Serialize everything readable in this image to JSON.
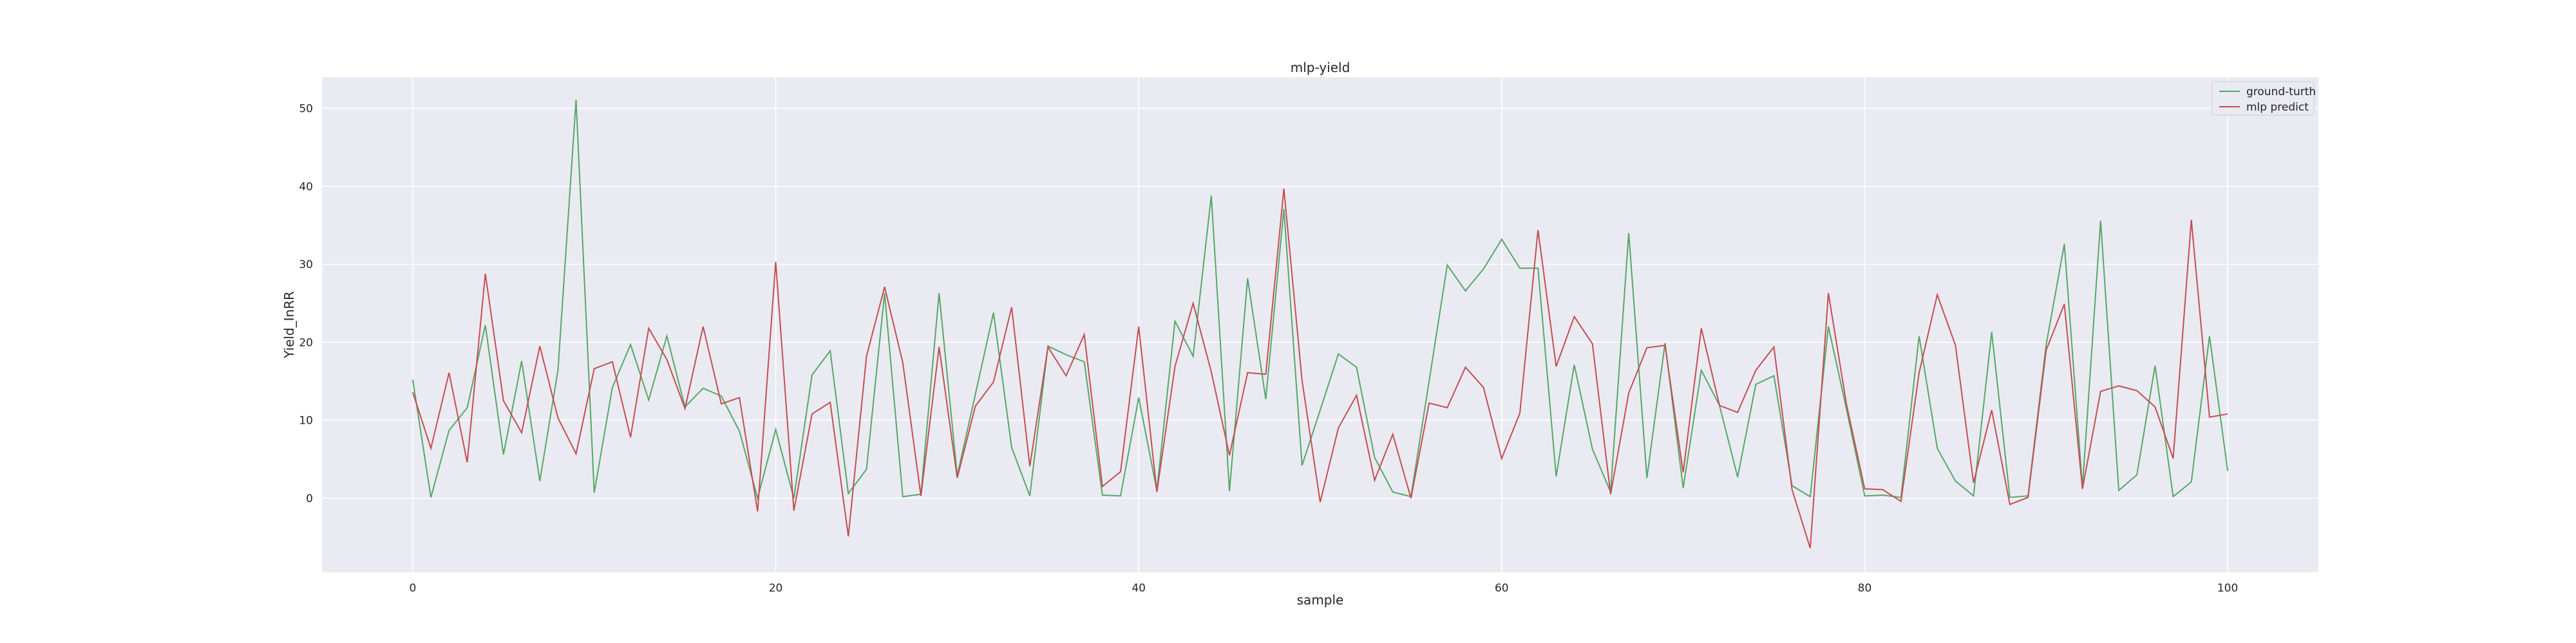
{
  "chart_data": {
    "type": "line",
    "title": "mlp-yield",
    "xlabel": "sample",
    "ylabel": "Yield_InRR",
    "xlim": [
      -5,
      105
    ],
    "ylim": [
      -9.5,
      54
    ],
    "x_ticks": [
      0,
      20,
      40,
      60,
      80,
      100
    ],
    "y_ticks": [
      0,
      10,
      20,
      30,
      40,
      50
    ],
    "grid": true,
    "background_color": "#eaeaf2",
    "legend_position": "top-right",
    "series": [
      {
        "name": "ground-turth",
        "color": "#55a868",
        "values": [
          15.2,
          0.1,
          8.7,
          11.6,
          22.2,
          5.6,
          17.6,
          2.2,
          16.4,
          51.1,
          0.7,
          14.2,
          19.7,
          12.6,
          20.8,
          11.7,
          14.1,
          13.1,
          8.6,
          0,
          8.8,
          0,
          15.8,
          18.9,
          0.6,
          3.7,
          26.3,
          0.2,
          0.5,
          26.3,
          2.9,
          13.3,
          23.8,
          6.5,
          0.3,
          19.5,
          18.4,
          17.5,
          0.4,
          0.3,
          12.9,
          1,
          22.7,
          18.2,
          38.8,
          0.9,
          28.2,
          12.7,
          37.1,
          4.2,
          11.3,
          18.5,
          16.8,
          5.2,
          0.8,
          0.2,
          15,
          29.9,
          26.6,
          29.4,
          33.2,
          29.5,
          29.5,
          2.8,
          17.1,
          6.3,
          0.8,
          34,
          2.6,
          19.9,
          1.3,
          16.4,
          11.9,
          2.7,
          14.6,
          15.7,
          1.6,
          0.2,
          22,
          11.4,
          0.3,
          0.4,
          0.1,
          20.8,
          6.4,
          2.2,
          0.3,
          21.3,
          0.1,
          0.3,
          19.7,
          32.6,
          1.4,
          35.6,
          1,
          3,
          17,
          0.2,
          2.1,
          20.8,
          3.5
        ]
      },
      {
        "name": "mlp predict",
        "color": "#c44e52",
        "values": [
          13.6,
          6.4,
          16.1,
          4.6,
          28.8,
          12.5,
          8.4,
          19.5,
          10.3,
          5.7,
          16.6,
          17.5,
          7.8,
          21.8,
          17.8,
          11.5,
          22,
          12.1,
          12.9,
          -1.7,
          30.3,
          -1.6,
          10.8,
          12.3,
          -4.9,
          18.2,
          27.1,
          17.4,
          0.3,
          19.4,
          2.6,
          11.8,
          14.9,
          24.5,
          4.1,
          19.4,
          15.7,
          21,
          1.5,
          3.4,
          22,
          0.8,
          16.9,
          25,
          16.2,
          5.5,
          16.1,
          15.9,
          39.7,
          15.1,
          -0.5,
          9,
          13.2,
          2.3,
          8.2,
          0,
          12.2,
          11.6,
          16.8,
          14.2,
          5.1,
          10.9,
          34.4,
          16.9,
          23.3,
          19.8,
          0.5,
          13.5,
          19.3,
          19.6,
          3.3,
          21.8,
          11.9,
          11,
          16.4,
          19.4,
          1.1,
          -6.4,
          26.3,
          12,
          1.2,
          1.1,
          -0.4,
          16.1,
          26.1,
          19.6,
          2,
          11.3,
          -0.8,
          0.1,
          19,
          24.9,
          1.2,
          13.7,
          14.4,
          13.8,
          11.7,
          5.1,
          35.7,
          10.4,
          10.8
        ]
      }
    ]
  }
}
